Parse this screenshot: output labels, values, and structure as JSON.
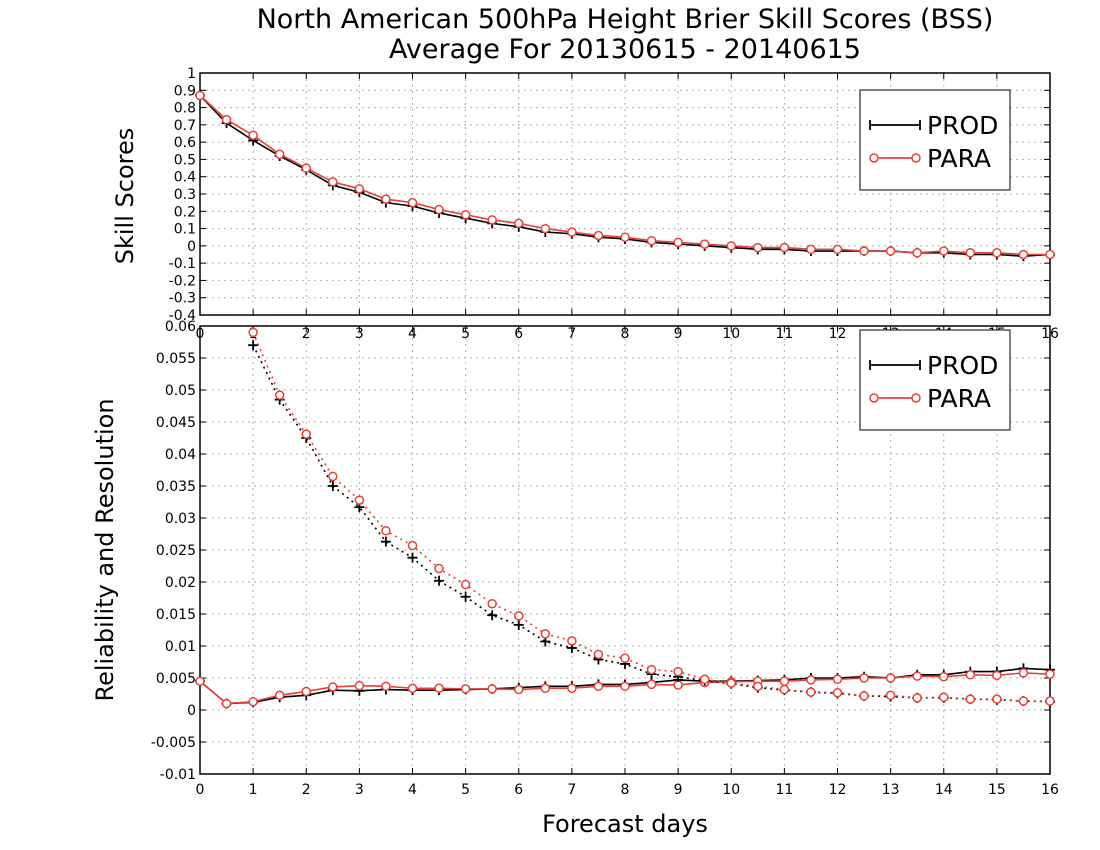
{
  "title_line1": "North American 500hPa Height Brier Skill Scores (BSS)",
  "title_line2": "Average For 20130615 - 20140615",
  "colors": {
    "PROD": "#000000",
    "PARA": "#e8403a"
  },
  "chart_data": [
    {
      "type": "line",
      "panel": "top",
      "ylabel": "Skill Scores",
      "xlim": [
        0,
        16
      ],
      "ylim": [
        -0.4,
        1
      ],
      "yticks": [
        "-0.4",
        "-0.3",
        "-0.2",
        "-0.1",
        "0",
        "0.1",
        "0.2",
        "0.3",
        "0.4",
        "0.5",
        "0.6",
        "0.7",
        "0.8",
        "0.9",
        "1"
      ],
      "xticks": [
        "0",
        "1",
        "2",
        "3",
        "4",
        "5",
        "6",
        "7",
        "8",
        "9",
        "10",
        "11",
        "12",
        "13",
        "14",
        "15",
        "16"
      ],
      "grid": true,
      "legend": {
        "placement": "top-right",
        "entries": [
          "PROD",
          "PARA"
        ]
      },
      "x": [
        0,
        0.5,
        1,
        1.5,
        2,
        2.5,
        3,
        3.5,
        4,
        4.5,
        5,
        5.5,
        6,
        6.5,
        7,
        7.5,
        8,
        8.5,
        9,
        9.5,
        10,
        10.5,
        11,
        11.5,
        12,
        12.5,
        13,
        13.5,
        14,
        14.5,
        15,
        15.5,
        16
      ],
      "series": [
        {
          "name": "PROD",
          "line": "solid",
          "marker": "plus",
          "values": [
            0.87,
            0.71,
            0.61,
            0.52,
            0.44,
            0.35,
            0.31,
            0.25,
            0.23,
            0.19,
            0.16,
            0.13,
            0.11,
            0.08,
            0.07,
            0.05,
            0.04,
            0.02,
            0.01,
            0.0,
            -0.01,
            -0.02,
            -0.02,
            -0.03,
            -0.03,
            -0.03,
            -0.03,
            -0.04,
            -0.04,
            -0.05,
            -0.05,
            -0.06,
            -0.05
          ]
        },
        {
          "name": "PARA",
          "line": "solid",
          "marker": "circle",
          "values": [
            0.87,
            0.73,
            0.64,
            0.53,
            0.45,
            0.37,
            0.33,
            0.27,
            0.25,
            0.21,
            0.18,
            0.15,
            0.13,
            0.1,
            0.08,
            0.06,
            0.05,
            0.03,
            0.02,
            0.01,
            0.0,
            -0.01,
            -0.01,
            -0.02,
            -0.02,
            -0.03,
            -0.03,
            -0.04,
            -0.03,
            -0.04,
            -0.04,
            -0.05,
            -0.05
          ]
        }
      ]
    },
    {
      "type": "line",
      "panel": "bottom",
      "ylabel": "Reliability and Resolution",
      "xlabel": "Forecast days",
      "xlim": [
        0,
        16
      ],
      "ylim": [
        -0.01,
        0.06
      ],
      "yticks": [
        "-0.01",
        "-0.005",
        "0",
        "0.005",
        "0.01",
        "0.015",
        "0.02",
        "0.025",
        "0.03",
        "0.035",
        "0.04",
        "0.045",
        "0.05",
        "0.055",
        "0.06"
      ],
      "xticks": [
        "0",
        "1",
        "2",
        "3",
        "4",
        "5",
        "6",
        "7",
        "8",
        "9",
        "10",
        "11",
        "12",
        "13",
        "14",
        "15",
        "16"
      ],
      "grid": true,
      "legend": {
        "placement": "top-right",
        "entries": [
          "PROD",
          "PARA"
        ]
      },
      "series": [
        {
          "name": "PROD",
          "line": "solid",
          "marker": "plus",
          "x": [
            0,
            0.5,
            1,
            1.5,
            2,
            2.5,
            3,
            3.5,
            4,
            4.5,
            5,
            5.5,
            6,
            6.5,
            7,
            7.5,
            8,
            8.5,
            9,
            9.5,
            10,
            10.5,
            11,
            11.5,
            12,
            12.5,
            13,
            13.5,
            14,
            14.5,
            15,
            15.5,
            16
          ],
          "values": [
            0.0045,
            0.001,
            0.0012,
            0.002,
            0.0023,
            0.0031,
            0.003,
            0.0032,
            0.0031,
            0.0031,
            0.0032,
            0.0033,
            0.0035,
            0.0037,
            0.0037,
            0.004,
            0.004,
            0.0043,
            0.0047,
            0.0045,
            0.0045,
            0.0046,
            0.0047,
            0.005,
            0.005,
            0.0052,
            0.005,
            0.0055,
            0.0055,
            0.006,
            0.006,
            0.0065,
            0.0063
          ]
        },
        {
          "name": "PARA",
          "line": "solid",
          "marker": "circle",
          "x": [
            0,
            0.5,
            1,
            1.5,
            2,
            2.5,
            3,
            3.5,
            4,
            4.5,
            5,
            5.5,
            6,
            6.5,
            7,
            7.5,
            8,
            8.5,
            9,
            9.5,
            10,
            10.5,
            11,
            11.5,
            12,
            12.5,
            13,
            13.5,
            14,
            14.5,
            15,
            15.5,
            16
          ],
          "values": [
            0.0045,
            0.001,
            0.0013,
            0.0023,
            0.0029,
            0.0036,
            0.0038,
            0.0037,
            0.0034,
            0.0034,
            0.0033,
            0.0033,
            0.0032,
            0.0034,
            0.0034,
            0.0037,
            0.0037,
            0.004,
            0.0039,
            0.0043,
            0.0044,
            0.0045,
            0.0045,
            0.0047,
            0.0048,
            0.005,
            0.005,
            0.0053,
            0.0052,
            0.0055,
            0.0054,
            0.0058,
            0.0056
          ]
        },
        {
          "name": "PROD",
          "line": "dotted",
          "marker": "plus",
          "x": [
            1,
            1.5,
            2,
            2.5,
            3,
            3.5,
            4,
            4.5,
            5,
            5.5,
            6,
            6.5,
            7,
            7.5,
            8,
            8.5,
            9,
            9.5,
            10,
            10.5,
            11,
            11.5,
            12,
            12.5,
            13,
            13.5,
            14,
            14.5,
            15,
            15.5,
            16
          ],
          "values": [
            0.057,
            0.0485,
            0.0425,
            0.035,
            0.0317,
            0.0263,
            0.0238,
            0.0202,
            0.0177,
            0.0148,
            0.0133,
            0.0107,
            0.0097,
            0.0079,
            0.0072,
            0.0056,
            0.0052,
            0.0046,
            0.0041,
            0.0035,
            0.0031,
            0.0028,
            0.0026,
            0.0022,
            0.0021,
            0.0019,
            0.0019,
            0.0017,
            0.0016,
            0.0014,
            0.0013
          ]
        },
        {
          "name": "PARA",
          "line": "dotted",
          "marker": "circle",
          "x": [
            1,
            1.5,
            2,
            2.5,
            3,
            3.5,
            4,
            4.5,
            5,
            5.5,
            6,
            6.5,
            7,
            7.5,
            8,
            8.5,
            9,
            9.5,
            10,
            10.5,
            11,
            11.5,
            12,
            12.5,
            13,
            13.5,
            14,
            14.5,
            15,
            15.5,
            16
          ],
          "values": [
            0.059,
            0.0492,
            0.0431,
            0.0365,
            0.0328,
            0.028,
            0.0257,
            0.0221,
            0.0196,
            0.0166,
            0.0147,
            0.0119,
            0.0108,
            0.0087,
            0.0081,
            0.0063,
            0.006,
            0.0048,
            0.0042,
            0.0037,
            0.0032,
            0.0028,
            0.0027,
            0.0022,
            0.0023,
            0.0019,
            0.002,
            0.0017,
            0.0017,
            0.0014,
            0.0014
          ]
        }
      ]
    }
  ]
}
